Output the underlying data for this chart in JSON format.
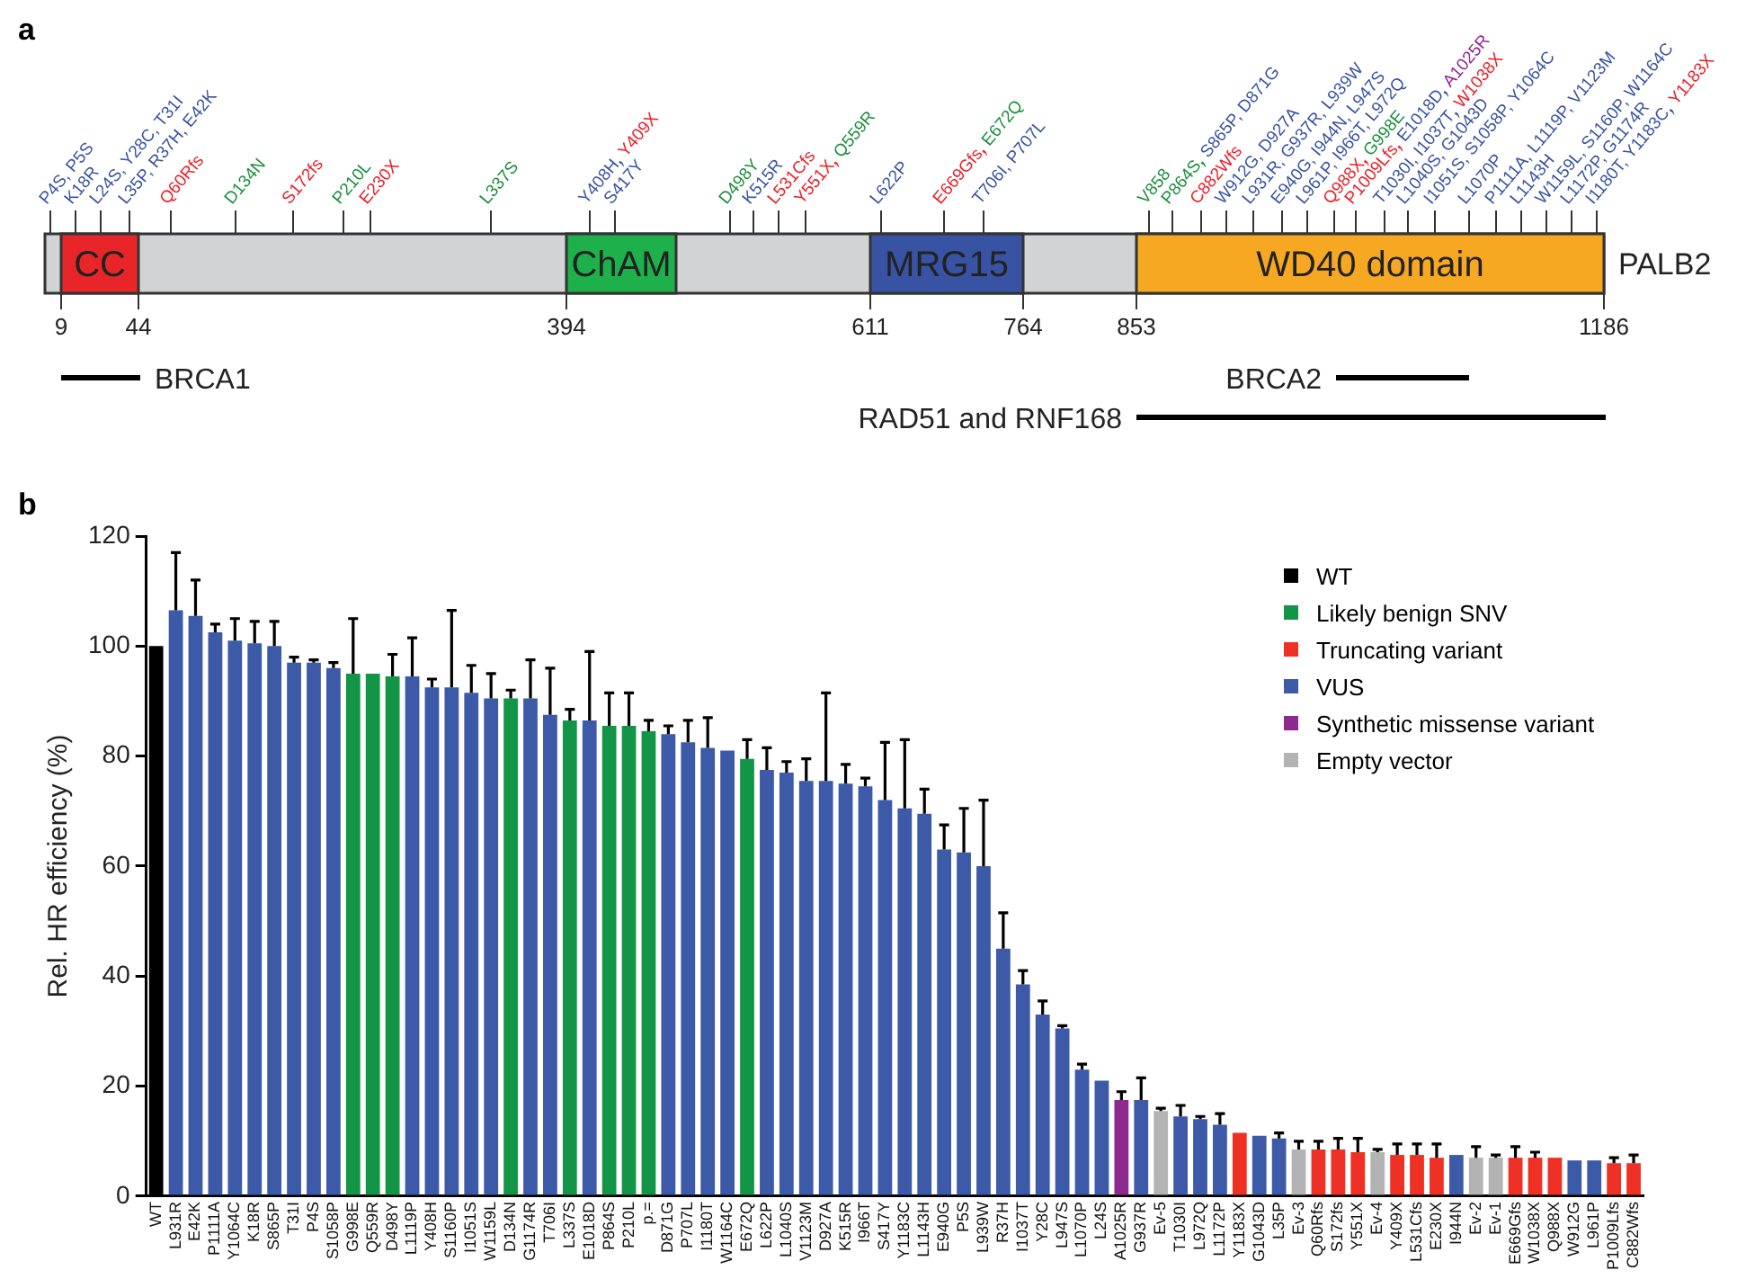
{
  "chart_data": [
    {
      "type": "other",
      "title": "a",
      "annotations": [
        "PALB2",
        "9",
        "44",
        "394",
        "611",
        "764",
        "853",
        "1186",
        "CC",
        "ChAM",
        "MRG15",
        "WD40 domain",
        "BRCA1",
        "BRCA2",
        "RAD51 and RNF168"
      ],
      "categories": [
        "P4S, P5S",
        "K18R",
        "L24S, Y28C, T31I",
        "L35P, R37H, E42K",
        "Q60Rfs",
        "D134N",
        "S172fs",
        "P210L",
        "E230X",
        "L337S",
        "Y408H",
        "Y409X",
        "S417Y",
        "D498Y",
        "K515R",
        "L531Cfs",
        "Y551X",
        "Q559R",
        "L622P",
        "E669Gfs",
        "E672Q",
        "T706I, P707L",
        "V858",
        "P864S",
        "S865P, D871G",
        "C882Wfs",
        "W912G, D927A",
        "L931R, G937R, L939W",
        "E940G, I944N, L947S",
        "L961P, I966T, L972Q",
        "Q988X",
        "G998E",
        "P1009Lfs",
        "E1018D",
        "A1025R",
        "T1030I, I1037T",
        "W1038X",
        "L1040S, G1043D",
        "I1051S, S1058P, Y1064C",
        "L1070P",
        "P1111A, L1119P, V1123M",
        "L1143H",
        "W1159L, S1160P, W1164C",
        "L1172P, G1174R",
        "I1180T, Y1183C",
        "Y1183X"
      ],
      "colors": [
        "#3953a4",
        "#3953a4",
        "#3953a4",
        "#3953a4",
        "#ed1c24",
        "#1a8f3c",
        "#ed1c24",
        "#1a8f3c",
        "#ed1c24",
        "#1a8f3c",
        "#3953a4",
        "#ed1c24",
        "#3953a4",
        "#1a8f3c",
        "#3953a4",
        "#ed1c24",
        "#ed1c24",
        "#1a8f3c",
        "#3953a4",
        "#ed1c24",
        "#1a8f3c",
        "#3953a4",
        "#1a8f3c",
        "#1a8f3c",
        "#3953a4",
        "#ed1c24",
        "#3953a4",
        "#3953a4",
        "#3953a4",
        "#3953a4",
        "#ed1c24",
        "#1a8f3c",
        "#ed1c24",
        "#3953a4",
        "#92278f",
        "#3953a4",
        "#ed1c24",
        "#3953a4",
        "#3953a4",
        "#3953a4",
        "#3953a4",
        "#3953a4",
        "#3953a4",
        "#3953a4",
        "#3953a4",
        "#ed1c24"
      ]
    },
    {
      "type": "bar",
      "title": "b",
      "ylabel": "Rel. HR efficiency (%)",
      "ylim": [
        0,
        120
      ],
      "yticks": [
        0,
        20,
        40,
        60,
        80,
        100,
        120
      ],
      "legend": "top right",
      "categories": [
        "WT",
        "L931R",
        "E42K",
        "P1111A",
        "Y1064C",
        "K18R",
        "S865P",
        "T31I",
        "P4S",
        "S1058P",
        "G998E",
        "Q559R",
        "D498Y",
        "L1119P",
        "Y408H",
        "S1160P",
        "I1051S",
        "W1159L",
        "D134N",
        "G1174R",
        "T706I",
        "L337S",
        "E1018D",
        "P864S",
        "P210L",
        "p.=",
        "D871G",
        "P707L",
        "I1180T",
        "W1164C",
        "E672Q",
        "L622P",
        "L1040S",
        "V1123M",
        "D927A",
        "K515R",
        "I966T",
        "S417Y",
        "Y1183C",
        "L1143H",
        "E940G",
        "P5S",
        "L939W",
        "R37H",
        "I1037T",
        "Y28C",
        "L947S",
        "L1070P",
        "L24S",
        "A1025R",
        "G937R",
        "Ev-5",
        "T1030I",
        "L972Q",
        "L1172P",
        "Y1183X",
        "G1043D",
        "L35P",
        "Ev-3",
        "Q60Rfs",
        "S172fs",
        "Y551X",
        "Ev-4",
        "Y409X",
        "L531Cfs",
        "E230X",
        "I944N",
        "Ev-2",
        "Ev-1",
        "E669Gfs",
        "W1038X",
        "Q988X",
        "W912G",
        "L961P",
        "P1009Lfs",
        "C882Wfs"
      ],
      "series": [
        {
          "name": "WT",
          "color": "#000000",
          "values": [
            100,
            null,
            null,
            null,
            null,
            null,
            null,
            null,
            null,
            null,
            null,
            null,
            null,
            null,
            null,
            null,
            null,
            null,
            null,
            null,
            null,
            null,
            null,
            null,
            null,
            null,
            null,
            null,
            null,
            null,
            null,
            null,
            null,
            null,
            null,
            null,
            null,
            null,
            null,
            null,
            null,
            null,
            null,
            null,
            null,
            null,
            null,
            null,
            null,
            null,
            null,
            null,
            null,
            null,
            null,
            null,
            null,
            null,
            null,
            null,
            null,
            null,
            null,
            null,
            null,
            null,
            null,
            null,
            null,
            null,
            null,
            null,
            null,
            null,
            null,
            null
          ]
        },
        {
          "name": "Likely benign SNV",
          "color": "#139548",
          "values": [
            null,
            null,
            null,
            null,
            null,
            null,
            null,
            null,
            null,
            null,
            95,
            95,
            94.5,
            null,
            null,
            null,
            null,
            null,
            90.5,
            null,
            null,
            86.5,
            null,
            85.5,
            85.5,
            84.5,
            null,
            null,
            null,
            null,
            79.5,
            null,
            null,
            null,
            null,
            null,
            null,
            null,
            null,
            null,
            null,
            null,
            null,
            null,
            null,
            null,
            null,
            null,
            null,
            null,
            null,
            null,
            null,
            null,
            null,
            null,
            null,
            null,
            null,
            null,
            null,
            null,
            null,
            null,
            null,
            null,
            null,
            null,
            null,
            null,
            null,
            null,
            null,
            null,
            null,
            null
          ],
          "errors": [
            null,
            null,
            null,
            null,
            null,
            null,
            null,
            null,
            null,
            null,
            [
              95,
              105
            ],
            null,
            [
              94.5,
              98.5
            ],
            null,
            null,
            null,
            null,
            null,
            [
              90.5,
              92
            ],
            null,
            null,
            [
              86.5,
              88.5
            ],
            null,
            [
              85.5,
              91.5
            ],
            [
              85.5,
              91.5
            ],
            [
              84.5,
              86.5
            ],
            null,
            null,
            null,
            null,
            [
              79.5,
              83
            ],
            null,
            null,
            null,
            null,
            null,
            null,
            null,
            null,
            null,
            null,
            null,
            null,
            null,
            null,
            null,
            null,
            null,
            null,
            null,
            null,
            null,
            null,
            null,
            null,
            null,
            null,
            null,
            null,
            null,
            null,
            null,
            null,
            null,
            null,
            null,
            null,
            null,
            null,
            null,
            null,
            null,
            null,
            null,
            null,
            null
          ]
        },
        {
          "name": "Truncating variant",
          "color": "#ee3124",
          "values": [
            null,
            null,
            null,
            null,
            null,
            null,
            null,
            null,
            null,
            null,
            null,
            null,
            null,
            null,
            null,
            null,
            null,
            null,
            null,
            null,
            null,
            null,
            null,
            null,
            null,
            null,
            null,
            null,
            null,
            null,
            null,
            null,
            null,
            null,
            null,
            null,
            null,
            null,
            null,
            null,
            null,
            null,
            null,
            null,
            null,
            null,
            null,
            null,
            null,
            null,
            null,
            null,
            null,
            null,
            null,
            11.5,
            null,
            null,
            null,
            8.5,
            8.5,
            8,
            null,
            7.5,
            7.5,
            7,
            null,
            null,
            null,
            7,
            7,
            7,
            null,
            null,
            6,
            6
          ],
          "errors": [
            null,
            null,
            null,
            null,
            null,
            null,
            null,
            null,
            null,
            null,
            null,
            null,
            null,
            null,
            null,
            null,
            null,
            null,
            null,
            null,
            null,
            null,
            null,
            null,
            null,
            null,
            null,
            null,
            null,
            null,
            null,
            null,
            null,
            null,
            null,
            null,
            null,
            null,
            null,
            null,
            null,
            null,
            null,
            null,
            null,
            null,
            null,
            null,
            null,
            null,
            null,
            null,
            null,
            null,
            null,
            null,
            null,
            null,
            null,
            [
              8.5,
              10
            ],
            [
              8.5,
              10.5
            ],
            [
              8,
              10.5
            ],
            null,
            [
              7.5,
              9.5
            ],
            [
              7.5,
              9.5
            ],
            [
              7,
              9.5
            ],
            null,
            null,
            null,
            [
              7,
              9
            ],
            [
              7,
              8
            ],
            null,
            null,
            null,
            [
              6,
              7
            ],
            [
              6,
              7.5
            ]
          ]
        },
        {
          "name": "VUS",
          "color": "#3c5aa8",
          "values": [
            null,
            106.5,
            105.5,
            102.5,
            101,
            100.5,
            100,
            97,
            97,
            96,
            null,
            null,
            null,
            94.5,
            92.5,
            92.5,
            91.5,
            90.5,
            null,
            90.5,
            87.5,
            null,
            86.5,
            null,
            null,
            null,
            84,
            82.5,
            81.5,
            81,
            null,
            77.5,
            77,
            75.5,
            75.5,
            75,
            74.5,
            72,
            70.5,
            69.5,
            63,
            62.5,
            60,
            45,
            38.5,
            33,
            30.5,
            23,
            21,
            null,
            17.5,
            null,
            14.5,
            14,
            13,
            null,
            11,
            10.5,
            null,
            null,
            null,
            null,
            null,
            null,
            null,
            null,
            7.5,
            null,
            null,
            null,
            null,
            null,
            6.5,
            6.5,
            null,
            null
          ],
          "errors": [
            null,
            [
              106.5,
              117
            ],
            [
              105.5,
              112
            ],
            [
              102.5,
              104
            ],
            [
              101,
              105
            ],
            [
              100.5,
              104.5
            ],
            [
              100,
              104.5
            ],
            [
              97,
              98
            ],
            [
              97,
              97.5
            ],
            [
              96,
              97
            ],
            null,
            null,
            null,
            [
              94.5,
              101.5
            ],
            [
              92.5,
              94
            ],
            [
              92.5,
              106.5
            ],
            [
              91.5,
              96.5
            ],
            [
              90.5,
              95
            ],
            null,
            [
              90.5,
              97.5
            ],
            [
              87.5,
              96
            ],
            null,
            [
              86.5,
              99
            ],
            null,
            null,
            null,
            [
              84,
              85.5
            ],
            [
              82.5,
              86.5
            ],
            [
              81.5,
              87
            ],
            null,
            null,
            [
              77.5,
              81.5
            ],
            [
              77,
              79
            ],
            [
              75.5,
              79.5
            ],
            [
              75.5,
              91.5
            ],
            [
              75,
              78.5
            ],
            [
              74.5,
              76
            ],
            [
              72,
              82.5
            ],
            [
              70.5,
              83
            ],
            [
              69.5,
              74
            ],
            [
              63,
              67.5
            ],
            [
              62.5,
              70.5
            ],
            [
              60,
              72
            ],
            [
              45,
              51.5
            ],
            [
              38.5,
              41
            ],
            [
              33,
              35.5
            ],
            [
              30.5,
              31
            ],
            [
              23,
              24
            ],
            null,
            null,
            [
              17.5,
              21.5
            ],
            null,
            [
              14.5,
              16.5
            ],
            [
              14,
              14.5
            ],
            [
              13,
              15
            ],
            null,
            null,
            [
              10.5,
              11.5
            ],
            null,
            null,
            null,
            null,
            null,
            null,
            null,
            null,
            null,
            null,
            null,
            null,
            null,
            null,
            null,
            null,
            null,
            null
          ]
        },
        {
          "name": "Synthetic missense variant",
          "color": "#8e2a8e",
          "values": [
            null,
            null,
            null,
            null,
            null,
            null,
            null,
            null,
            null,
            null,
            null,
            null,
            null,
            null,
            null,
            null,
            null,
            null,
            null,
            null,
            null,
            null,
            null,
            null,
            null,
            null,
            null,
            null,
            null,
            null,
            null,
            null,
            null,
            null,
            null,
            null,
            null,
            null,
            null,
            null,
            null,
            null,
            null,
            null,
            null,
            null,
            null,
            null,
            null,
            17.5,
            null,
            null,
            null,
            null,
            null,
            null,
            null,
            null,
            null,
            null,
            null,
            null,
            null,
            null,
            null,
            null,
            null,
            null,
            null,
            null,
            null,
            null,
            null,
            null,
            null,
            null
          ],
          "errors": [
            null,
            null,
            null,
            null,
            null,
            null,
            null,
            null,
            null,
            null,
            null,
            null,
            null,
            null,
            null,
            null,
            null,
            null,
            null,
            null,
            null,
            null,
            null,
            null,
            null,
            null,
            null,
            null,
            null,
            null,
            null,
            null,
            null,
            null,
            null,
            null,
            null,
            null,
            null,
            null,
            null,
            null,
            null,
            null,
            null,
            null,
            null,
            null,
            null,
            [
              17.5,
              19
            ],
            null,
            null,
            null,
            null,
            null,
            null,
            null,
            null,
            null,
            null,
            null,
            null,
            null,
            null,
            null,
            null,
            null,
            null,
            null,
            null,
            null,
            null,
            null,
            null,
            null,
            null
          ]
        },
        {
          "name": "Empty vector",
          "color": "#b3b3b3",
          "values": [
            null,
            null,
            null,
            null,
            null,
            null,
            null,
            null,
            null,
            null,
            null,
            null,
            null,
            null,
            null,
            null,
            null,
            null,
            null,
            null,
            null,
            null,
            null,
            null,
            null,
            null,
            null,
            null,
            null,
            null,
            null,
            null,
            null,
            null,
            null,
            null,
            null,
            null,
            null,
            null,
            null,
            null,
            null,
            null,
            null,
            null,
            null,
            null,
            null,
            null,
            null,
            15.5,
            null,
            null,
            null,
            null,
            null,
            null,
            8.5,
            null,
            null,
            null,
            8,
            null,
            null,
            null,
            null,
            7,
            7,
            null,
            null,
            null,
            null,
            null,
            null,
            null
          ],
          "errors": [
            null,
            null,
            null,
            null,
            null,
            null,
            null,
            null,
            null,
            null,
            null,
            null,
            null,
            null,
            null,
            null,
            null,
            null,
            null,
            null,
            null,
            null,
            null,
            null,
            null,
            null,
            null,
            null,
            null,
            null,
            null,
            null,
            null,
            null,
            null,
            null,
            null,
            null,
            null,
            null,
            null,
            null,
            null,
            null,
            null,
            null,
            null,
            null,
            null,
            null,
            null,
            [
              15.5,
              16
            ],
            null,
            null,
            null,
            null,
            null,
            null,
            [
              8.5,
              10
            ],
            null,
            null,
            null,
            [
              8,
              8.5
            ],
            null,
            null,
            null,
            null,
            [
              7,
              9
            ],
            [
              7,
              7.5
            ],
            null,
            null,
            null,
            null,
            null,
            null,
            null
          ]
        }
      ]
    }
  ]
}
